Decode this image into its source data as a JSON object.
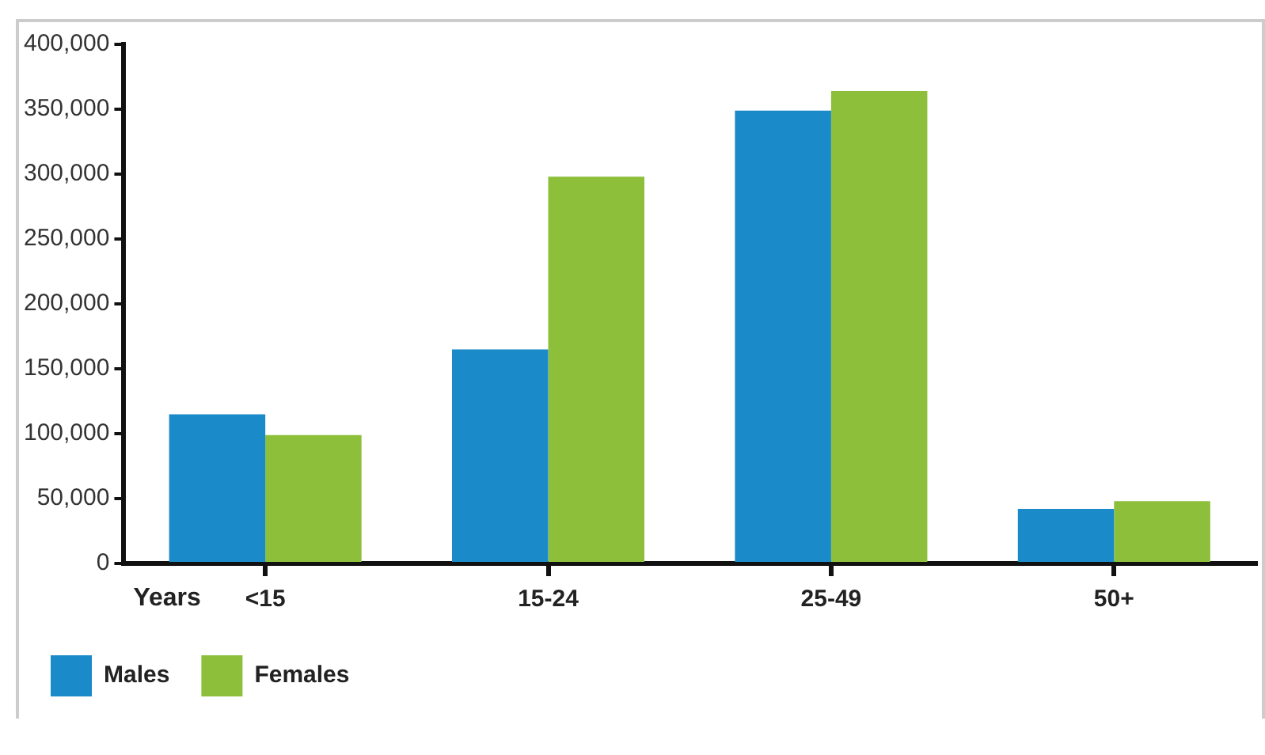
{
  "chart_data": {
    "type": "bar",
    "xlabel": "Years",
    "categories": [
      "<15",
      "15-24",
      "25-49",
      "50+"
    ],
    "series": [
      {
        "name": "Males",
        "color": "#1b8ac8",
        "values": [
          115000,
          165000,
          349000,
          42000
        ]
      },
      {
        "name": "Females",
        "color": "#8dbf3a",
        "values": [
          99000,
          298000,
          364000,
          48000
        ]
      }
    ],
    "ylim": [
      0,
      400000
    ],
    "yticks": [
      {
        "value": 0,
        "label": "0"
      },
      {
        "value": 50000,
        "label": "50,000"
      },
      {
        "value": 100000,
        "label": "100,000"
      },
      {
        "value": 150000,
        "label": "150,000"
      },
      {
        "value": 200000,
        "label": "200,000"
      },
      {
        "value": 250000,
        "label": "250,000"
      },
      {
        "value": 300000,
        "label": "300,000"
      },
      {
        "value": 350000,
        "label": "350,000"
      },
      {
        "value": 400000,
        "label": "400,000"
      }
    ],
    "grid": false,
    "legend": "bottom left"
  }
}
